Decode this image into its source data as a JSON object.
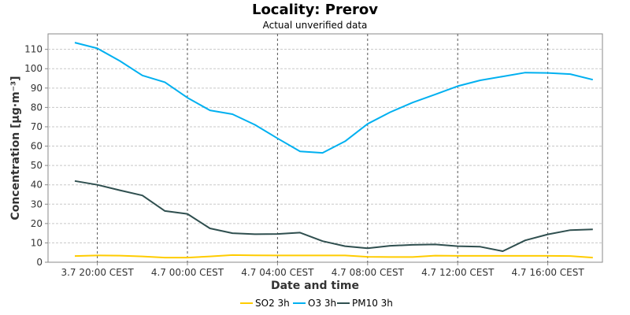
{
  "chart_data": {
    "type": "line",
    "title": "Locality: Prerov",
    "subtitle": "Actual unverified data",
    "xlabel": "Date and time",
    "ylabel": "Concentration [µg·m⁻³]",
    "ylim": [
      0,
      118
    ],
    "yticks": [
      0,
      10,
      20,
      30,
      40,
      50,
      60,
      70,
      80,
      90,
      100,
      110
    ],
    "grid": true,
    "legend_position": "bottom",
    "x_points": [
      "3.7 19:00",
      "3.7 20:00",
      "3.7 21:00",
      "3.7 22:00",
      "3.7 23:00",
      "4.7 00:00",
      "4.7 01:00",
      "4.7 02:00",
      "4.7 03:00",
      "4.7 04:00",
      "4.7 05:00",
      "4.7 06:00",
      "4.7 07:00",
      "4.7 08:00",
      "4.7 09:00",
      "4.7 10:00",
      "4.7 11:00",
      "4.7 12:00",
      "4.7 13:00",
      "4.7 14:00",
      "4.7 15:00",
      "4.7 16:00",
      "4.7 17:00",
      "4.7 18:00"
    ],
    "x_tick_labels": [
      {
        "index": 1,
        "label": "3.7 20:00 CEST"
      },
      {
        "index": 5,
        "label": "4.7 00:00 CEST"
      },
      {
        "index": 9,
        "label": "4.7 04:00 CEST"
      },
      {
        "index": 13,
        "label": "4.7 08:00 CEST"
      },
      {
        "index": 17,
        "label": "4.7 12:00 CEST"
      },
      {
        "index": 21,
        "label": "4.7 16:00 CEST"
      }
    ],
    "series": [
      {
        "name": "SO2 3h",
        "color": "#ffcc00",
        "values": [
          3.2,
          3.5,
          3.4,
          3.0,
          2.4,
          2.4,
          3.0,
          3.7,
          3.6,
          3.5,
          3.5,
          3.5,
          3.5,
          2.8,
          2.7,
          2.7,
          3.4,
          3.3,
          3.3,
          3.3,
          3.3,
          3.3,
          3.2,
          2.4
        ]
      },
      {
        "name": "O3 3h",
        "color": "#00b0f0",
        "values": [
          113.5,
          110.5,
          104,
          96.5,
          93,
          85,
          78.5,
          76.5,
          71,
          64,
          57.3,
          56.5,
          62.5,
          71.5,
          77.5,
          82.5,
          86.7,
          91,
          94,
          96,
          98,
          97.8,
          97.2,
          94.3
        ]
      },
      {
        "name": "PM10 3h",
        "color": "#2f4f4f",
        "values": [
          42,
          40,
          37.2,
          34.5,
          26.5,
          25,
          17.5,
          15,
          14.5,
          14.6,
          15.3,
          10.9,
          8.3,
          7.2,
          8.5,
          9,
          9.2,
          8.3,
          8,
          5.7,
          11.3,
          14.4,
          16.6,
          17
        ]
      }
    ]
  }
}
